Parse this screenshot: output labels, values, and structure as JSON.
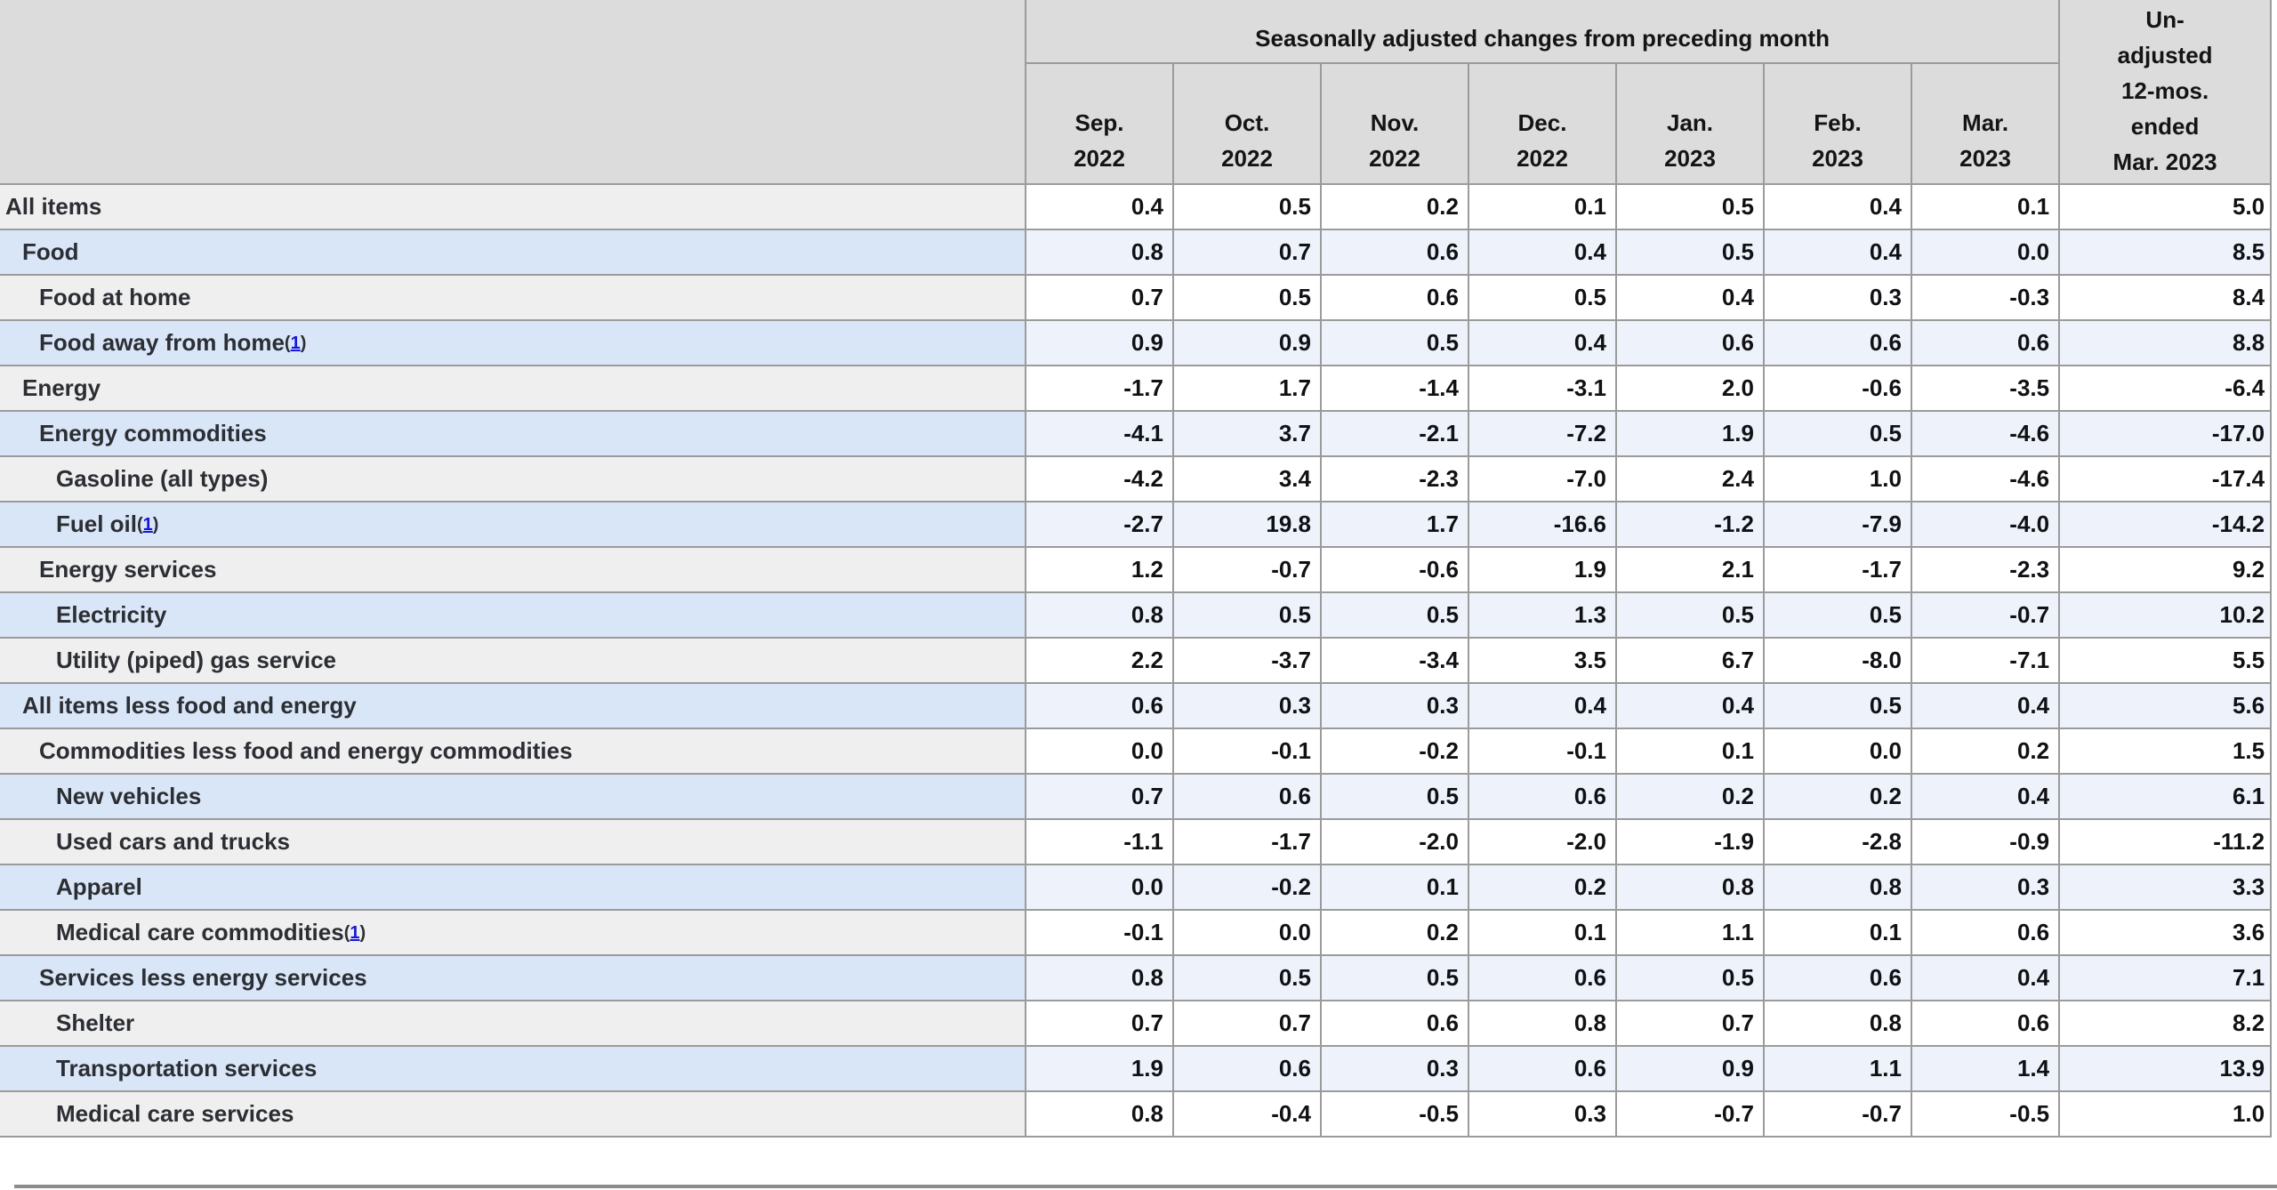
{
  "table": {
    "header": {
      "group_label": "Seasonally adjusted changes from preceding month",
      "unadjusted_label": "Un-\nadjusted\n12-mos.\nended\nMar. 2023",
      "months": [
        {
          "month": "Sep.",
          "year": "2022"
        },
        {
          "month": "Oct.",
          "year": "2022"
        },
        {
          "month": "Nov.",
          "year": "2022"
        },
        {
          "month": "Dec.",
          "year": "2022"
        },
        {
          "month": "Jan.",
          "year": "2023"
        },
        {
          "month": "Feb.",
          "year": "2023"
        },
        {
          "month": "Mar.",
          "year": "2023"
        }
      ]
    },
    "rows": [
      {
        "label": "All items",
        "indent": 0,
        "footnote": null,
        "values": [
          "0.4",
          "0.5",
          "0.2",
          "0.1",
          "0.5",
          "0.4",
          "0.1",
          "5.0"
        ]
      },
      {
        "label": "Food",
        "indent": 1,
        "footnote": null,
        "values": [
          "0.8",
          "0.7",
          "0.6",
          "0.4",
          "0.5",
          "0.4",
          "0.0",
          "8.5"
        ]
      },
      {
        "label": "Food at home",
        "indent": 2,
        "footnote": null,
        "values": [
          "0.7",
          "0.5",
          "0.6",
          "0.5",
          "0.4",
          "0.3",
          "-0.3",
          "8.4"
        ]
      },
      {
        "label": "Food away from home",
        "indent": 2,
        "footnote": "1",
        "values": [
          "0.9",
          "0.9",
          "0.5",
          "0.4",
          "0.6",
          "0.6",
          "0.6",
          "8.8"
        ]
      },
      {
        "label": "Energy",
        "indent": 1,
        "footnote": null,
        "values": [
          "-1.7",
          "1.7",
          "-1.4",
          "-3.1",
          "2.0",
          "-0.6",
          "-3.5",
          "-6.4"
        ]
      },
      {
        "label": "Energy commodities",
        "indent": 2,
        "footnote": null,
        "values": [
          "-4.1",
          "3.7",
          "-2.1",
          "-7.2",
          "1.9",
          "0.5",
          "-4.6",
          "-17.0"
        ]
      },
      {
        "label": "Gasoline (all types)",
        "indent": 3,
        "footnote": null,
        "values": [
          "-4.2",
          "3.4",
          "-2.3",
          "-7.0",
          "2.4",
          "1.0",
          "-4.6",
          "-17.4"
        ]
      },
      {
        "label": "Fuel oil",
        "indent": 3,
        "footnote": "1",
        "values": [
          "-2.7",
          "19.8",
          "1.7",
          "-16.6",
          "-1.2",
          "-7.9",
          "-4.0",
          "-14.2"
        ]
      },
      {
        "label": "Energy services",
        "indent": 2,
        "footnote": null,
        "values": [
          "1.2",
          "-0.7",
          "-0.6",
          "1.9",
          "2.1",
          "-1.7",
          "-2.3",
          "9.2"
        ]
      },
      {
        "label": "Electricity",
        "indent": 3,
        "footnote": null,
        "values": [
          "0.8",
          "0.5",
          "0.5",
          "1.3",
          "0.5",
          "0.5",
          "-0.7",
          "10.2"
        ]
      },
      {
        "label": "Utility (piped) gas service",
        "indent": 3,
        "footnote": null,
        "values": [
          "2.2",
          "-3.7",
          "-3.4",
          "3.5",
          "6.7",
          "-8.0",
          "-7.1",
          "5.5"
        ]
      },
      {
        "label": "All items less food and energy",
        "indent": 1,
        "footnote": null,
        "values": [
          "0.6",
          "0.3",
          "0.3",
          "0.4",
          "0.4",
          "0.5",
          "0.4",
          "5.6"
        ]
      },
      {
        "label": "Commodities less food and energy commodities",
        "indent": 2,
        "footnote": null,
        "values": [
          "0.0",
          "-0.1",
          "-0.2",
          "-0.1",
          "0.1",
          "0.0",
          "0.2",
          "1.5"
        ]
      },
      {
        "label": "New vehicles",
        "indent": 3,
        "footnote": null,
        "values": [
          "0.7",
          "0.6",
          "0.5",
          "0.6",
          "0.2",
          "0.2",
          "0.4",
          "6.1"
        ]
      },
      {
        "label": "Used cars and trucks",
        "indent": 3,
        "footnote": null,
        "values": [
          "-1.1",
          "-1.7",
          "-2.0",
          "-2.0",
          "-1.9",
          "-2.8",
          "-0.9",
          "-11.2"
        ]
      },
      {
        "label": "Apparel",
        "indent": 3,
        "footnote": null,
        "values": [
          "0.0",
          "-0.2",
          "0.1",
          "0.2",
          "0.8",
          "0.8",
          "0.3",
          "3.3"
        ]
      },
      {
        "label": "Medical care commodities",
        "indent": 3,
        "footnote": "1",
        "values": [
          "-0.1",
          "0.0",
          "0.2",
          "0.1",
          "1.1",
          "0.1",
          "0.6",
          "3.6"
        ]
      },
      {
        "label": "Services less energy services",
        "indent": 2,
        "footnote": null,
        "values": [
          "0.8",
          "0.5",
          "0.5",
          "0.6",
          "0.5",
          "0.6",
          "0.4",
          "7.1"
        ]
      },
      {
        "label": "Shelter",
        "indent": 3,
        "footnote": null,
        "values": [
          "0.7",
          "0.7",
          "0.6",
          "0.8",
          "0.7",
          "0.8",
          "0.6",
          "8.2"
        ]
      },
      {
        "label": "Transportation services",
        "indent": 3,
        "footnote": null,
        "values": [
          "1.9",
          "0.6",
          "0.3",
          "0.6",
          "0.9",
          "1.1",
          "1.4",
          "13.9"
        ]
      },
      {
        "label": "Medical care services",
        "indent": 3,
        "footnote": null,
        "values": [
          "0.8",
          "-0.4",
          "-0.5",
          "0.3",
          "-0.7",
          "-0.7",
          "-0.5",
          "1.0"
        ]
      }
    ]
  },
  "colors": {
    "header_bg": "#dcdcdc",
    "header_text": "#141414",
    "gray_label": "#efefef",
    "blue_label": "#d9e6f8",
    "blue_data": "#eef3fb",
    "label_text": "#2b2e33",
    "number_text": "#101114",
    "border": "#9b9b9b",
    "link": "#1717d9"
  }
}
